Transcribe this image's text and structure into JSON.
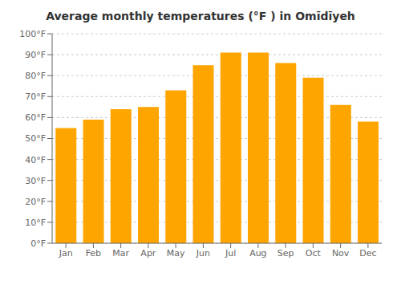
{
  "chart_data": {
    "type": "bar",
    "title": "Average monthly temperatures (°F ) in Omīdīyeh",
    "categories": [
      "Jan",
      "Feb",
      "Mar",
      "Apr",
      "May",
      "Jun",
      "Jul",
      "Aug",
      "Sep",
      "Oct",
      "Nov",
      "Dec"
    ],
    "values": [
      55,
      59,
      64,
      65,
      73,
      85,
      91,
      91,
      86,
      79,
      66,
      58
    ],
    "color": "#FFA500",
    "ylim": [
      0,
      100
    ],
    "yticks": [
      {
        "value": 0,
        "label": "0°F"
      },
      {
        "value": 10,
        "label": "10°F"
      },
      {
        "value": 20,
        "label": "20°F"
      },
      {
        "value": 30,
        "label": "30°F"
      },
      {
        "value": 40,
        "label": "40°F"
      },
      {
        "value": 50,
        "label": "50°F"
      },
      {
        "value": 60,
        "label": "60°F"
      },
      {
        "value": 70,
        "label": "70°F"
      },
      {
        "value": 80,
        "label": "80°F"
      },
      {
        "value": 90,
        "label": "90°F"
      },
      {
        "value": 100,
        "label": "100°F"
      }
    ],
    "grid": true
  }
}
